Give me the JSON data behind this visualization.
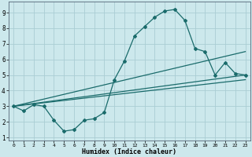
{
  "xlabel": "Humidex (Indice chaleur)",
  "background_color": "#cce8ec",
  "grid_color": "#aacdd4",
  "line_color": "#1a6b6b",
  "xlim": [
    -0.5,
    23.5
  ],
  "ylim": [
    0.8,
    9.7
  ],
  "xticks": [
    0,
    1,
    2,
    3,
    4,
    5,
    6,
    7,
    8,
    9,
    10,
    11,
    12,
    13,
    14,
    15,
    16,
    17,
    18,
    19,
    20,
    21,
    22,
    23
  ],
  "yticks": [
    1,
    2,
    3,
    4,
    5,
    6,
    7,
    8,
    9
  ],
  "line1_x": [
    0,
    1,
    2,
    3,
    4,
    5,
    6,
    7,
    8,
    9,
    10,
    11,
    12,
    13,
    14,
    15,
    16,
    17,
    18,
    19,
    20,
    21,
    22,
    23
  ],
  "line1_y": [
    3.0,
    2.7,
    3.1,
    3.0,
    2.1,
    1.4,
    1.5,
    2.1,
    2.2,
    2.6,
    4.7,
    5.9,
    7.5,
    8.1,
    8.7,
    9.1,
    9.2,
    8.5,
    6.7,
    6.5,
    5.0,
    5.8,
    5.1,
    5.0
  ],
  "line2_x": [
    0,
    23
  ],
  "line2_y": [
    3.0,
    5.0
  ],
  "line3_x": [
    0,
    23
  ],
  "line3_y": [
    3.0,
    6.5
  ],
  "line4_x": [
    0,
    23
  ],
  "line4_y": [
    3.0,
    4.7
  ]
}
